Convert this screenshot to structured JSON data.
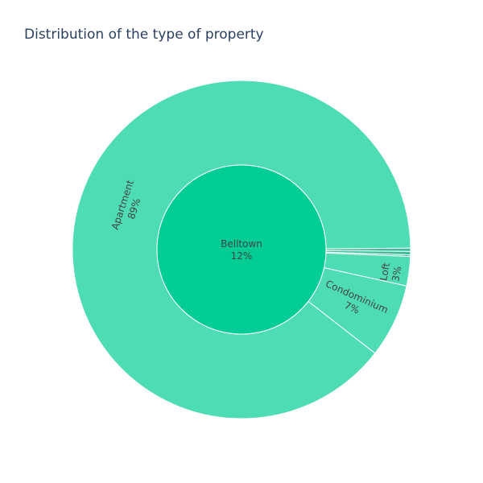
{
  "chart_data": {
    "type": "sunburst",
    "title": "Distribution of the type of property",
    "root": {
      "name": "Belltown",
      "percent_label": "12%"
    },
    "children": [
      {
        "name": "Apartment",
        "percent_label": "89%",
        "share": 0.8935
      },
      {
        "name": "Condominium",
        "percent_label": "7%",
        "share": 0.0705
      },
      {
        "name": "Loft",
        "percent_label": "3%",
        "share": 0.028
      },
      {
        "name": "",
        "percent_label": "",
        "share": 0.0032
      },
      {
        "name": "",
        "percent_label": "",
        "share": 0.0032
      },
      {
        "name": "",
        "percent_label": "",
        "share": 0.0016
      }
    ],
    "colors": {
      "inner": "#00cc96",
      "outer": "#4ddcb4",
      "outer_small": "#3bbf9a",
      "border": "#ffffff",
      "text": "#444444",
      "title": "#2a3f5f"
    }
  }
}
